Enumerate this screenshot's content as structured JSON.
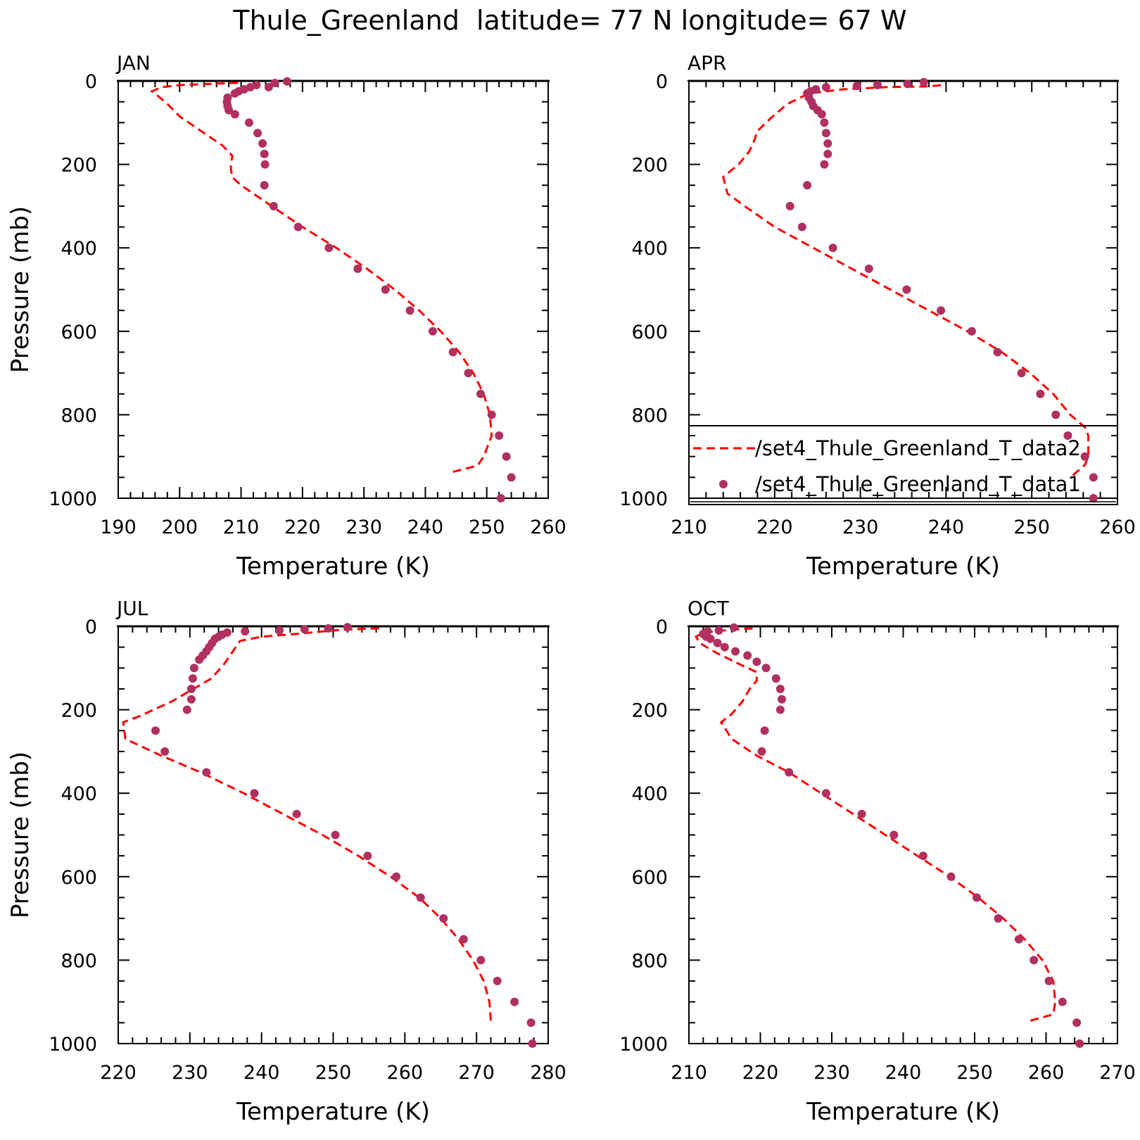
{
  "page": {
    "title": "Thule_Greenland  latitude= 77 N longitude= 67 W"
  },
  "colors": {
    "model_line": "#ff0000",
    "obs_dots": "#b03060"
  },
  "chart_data": [
    {
      "type": "line",
      "panel": "JAN",
      "xlabel": "Temperature (K)",
      "ylabel": "Pressure (mb)",
      "xlim": [
        190,
        260
      ],
      "ylim": [
        1000,
        0
      ],
      "y_inverted": true,
      "xticks": [
        190,
        200,
        210,
        220,
        230,
        240,
        250,
        260
      ],
      "yticks": [
        0,
        200,
        400,
        600,
        800,
        1000
      ],
      "legend": "none",
      "series": [
        {
          "style": "dashed-line",
          "points": [
            [
              244.5,
              937
            ],
            [
              248.5,
              922
            ],
            [
              249.5,
              900
            ],
            [
              250.8,
              850
            ],
            [
              250.5,
              800
            ],
            [
              249.5,
              750
            ],
            [
              247.8,
              700
            ],
            [
              245.5,
              650
            ],
            [
              242.5,
              600
            ],
            [
              239,
              550
            ],
            [
              235,
              500
            ],
            [
              230.5,
              450
            ],
            [
              225.5,
              400
            ],
            [
              220,
              350
            ],
            [
              215,
              300
            ],
            [
              212,
              270
            ],
            [
              210,
              250
            ],
            [
              208.5,
              230
            ],
            [
              208.3,
              200
            ],
            [
              208.6,
              180
            ],
            [
              207,
              155
            ],
            [
              205,
              135
            ],
            [
              200,
              85
            ],
            [
              198,
              55
            ],
            [
              196,
              30
            ],
            [
              195.5,
              25
            ],
            [
              197,
              15
            ],
            [
              200,
              10
            ],
            [
              205,
              7
            ],
            [
              210,
              4
            ]
          ]
        },
        {
          "style": "dots",
          "points": [
            [
              252.3,
              1000
            ],
            [
              254,
              950
            ],
            [
              253.2,
              900
            ],
            [
              252,
              850
            ],
            [
              250.8,
              800
            ],
            [
              249,
              750
            ],
            [
              247,
              700
            ],
            [
              244.5,
              650
            ],
            [
              241.2,
              600
            ],
            [
              237.5,
              550
            ],
            [
              233.5,
              500
            ],
            [
              229,
              450
            ],
            [
              224.3,
              400
            ],
            [
              219.3,
              350
            ],
            [
              215.3,
              300
            ],
            [
              213.8,
              250
            ],
            [
              213.9,
              200
            ],
            [
              213.8,
              175
            ],
            [
              213.5,
              150
            ],
            [
              212.7,
              125
            ],
            [
              211.3,
              100
            ],
            [
              209,
              80
            ],
            [
              208,
              70
            ],
            [
              207.8,
              60
            ],
            [
              207.7,
              50
            ],
            [
              207.8,
              40
            ],
            [
              209,
              30
            ],
            [
              209.6,
              25
            ],
            [
              210.5,
              20
            ],
            [
              211.5,
              15
            ],
            [
              212.5,
              10
            ],
            [
              214.5,
              15
            ],
            [
              215.5,
              5
            ],
            [
              217.5,
              1
            ]
          ]
        }
      ]
    },
    {
      "type": "line",
      "panel": "APR",
      "xlabel": "Temperature (K)",
      "ylabel": "",
      "xlim": [
        210,
        260
      ],
      "ylim": [
        1000,
        0
      ],
      "y_inverted": true,
      "xticks": [
        210,
        220,
        230,
        240,
        250,
        260
      ],
      "yticks": [
        0,
        200,
        400,
        600,
        800,
        1000
      ],
      "legend": "bottom-right",
      "series": [
        {
          "name": "/set4_Thule_Greenland_T_data2",
          "style": "dashed-line",
          "points": [
            [
              254.8,
              945
            ],
            [
              256.2,
              920
            ],
            [
              256.6,
              900
            ],
            [
              256.6,
              850
            ],
            [
              256.2,
              830
            ],
            [
              254.5,
              800
            ],
            [
              252.5,
              750
            ],
            [
              249.8,
              700
            ],
            [
              246.5,
              650
            ],
            [
              242.5,
              600
            ],
            [
              238,
              550
            ],
            [
              233.5,
              500
            ],
            [
              229,
              450
            ],
            [
              224.5,
              400
            ],
            [
              220,
              350
            ],
            [
              216.5,
              300
            ],
            [
              214.5,
              270
            ],
            [
              214,
              230
            ],
            [
              215.8,
              200
            ],
            [
              217,
              170
            ],
            [
              217.5,
              150
            ],
            [
              218,
              120
            ],
            [
              219.5,
              90
            ],
            [
              221.5,
              55
            ],
            [
              224,
              30
            ],
            [
              228,
              20
            ],
            [
              233,
              15
            ],
            [
              238,
              13
            ],
            [
              239.5,
              10
            ]
          ]
        },
        {
          "name": "/set4_Thule_Greenland_T_data1",
          "style": "dots",
          "points": [
            [
              257.2,
              1000
            ],
            [
              257.2,
              950
            ],
            [
              256.2,
              900
            ],
            [
              254.2,
              850
            ],
            [
              252.8,
              800
            ],
            [
              251,
              750
            ],
            [
              248.8,
              700
            ],
            [
              246,
              650
            ],
            [
              243,
              600
            ],
            [
              239.4,
              550
            ],
            [
              235.4,
              500
            ],
            [
              231,
              450
            ],
            [
              226.8,
              400
            ],
            [
              223.2,
              350
            ],
            [
              221.8,
              300
            ],
            [
              223.8,
              250
            ],
            [
              225.8,
              200
            ],
            [
              226.2,
              175
            ],
            [
              226.2,
              150
            ],
            [
              226,
              125
            ],
            [
              225.8,
              100
            ],
            [
              225.5,
              80
            ],
            [
              225,
              70
            ],
            [
              224.5,
              60
            ],
            [
              224.3,
              50
            ],
            [
              224,
              40
            ],
            [
              223.8,
              30
            ],
            [
              224.2,
              25
            ],
            [
              224.8,
              20
            ],
            [
              226,
              15
            ],
            [
              229.6,
              12
            ],
            [
              232,
              10
            ],
            [
              235.5,
              7
            ],
            [
              237.4,
              3
            ]
          ]
        }
      ]
    },
    {
      "type": "line",
      "panel": "JUL",
      "xlabel": "Temperature (K)",
      "ylabel": "Pressure (mb)",
      "xlim": [
        220,
        280
      ],
      "ylim": [
        1000,
        0
      ],
      "y_inverted": true,
      "xticks": [
        220,
        230,
        240,
        250,
        260,
        270,
        280
      ],
      "yticks": [
        0,
        200,
        400,
        600,
        800,
        1000
      ],
      "legend": "none",
      "series": [
        {
          "style": "dashed-line",
          "points": [
            [
              272,
              945
            ],
            [
              271.8,
              900
            ],
            [
              271,
              850
            ],
            [
              269.5,
              800
            ],
            [
              267.5,
              750
            ],
            [
              265,
              700
            ],
            [
              262,
              650
            ],
            [
              258,
              600
            ],
            [
              253.5,
              550
            ],
            [
              248.5,
              500
            ],
            [
              243,
              450
            ],
            [
              237.5,
              400
            ],
            [
              231.5,
              350
            ],
            [
              226,
              310
            ],
            [
              221,
              270
            ],
            [
              220.7,
              230
            ],
            [
              223,
              215
            ],
            [
              227.5,
              180
            ],
            [
              230.5,
              150
            ],
            [
              233,
              125
            ],
            [
              234.8,
              90
            ],
            [
              236,
              60
            ],
            [
              237,
              35
            ],
            [
              240,
              25
            ],
            [
              245,
              18
            ],
            [
              250,
              10
            ],
            [
              254,
              6
            ],
            [
              256.5,
              5
            ]
          ]
        },
        {
          "style": "dots",
          "points": [
            [
              277.8,
              1000
            ],
            [
              277.6,
              950
            ],
            [
              275.3,
              900
            ],
            [
              272.9,
              850
            ],
            [
              270.6,
              800
            ],
            [
              268.2,
              750
            ],
            [
              265.4,
              700
            ],
            [
              262.2,
              650
            ],
            [
              258.8,
              600
            ],
            [
              254.8,
              550
            ],
            [
              250.3,
              500
            ],
            [
              244.9,
              450
            ],
            [
              239,
              400
            ],
            [
              232.3,
              350
            ],
            [
              226.5,
              300
            ],
            [
              225.2,
              250
            ],
            [
              229.6,
              200
            ],
            [
              230.2,
              175
            ],
            [
              230.2,
              150
            ],
            [
              230.4,
              125
            ],
            [
              230.6,
              100
            ],
            [
              231.3,
              80
            ],
            [
              231.8,
              70
            ],
            [
              232.3,
              60
            ],
            [
              232.7,
              50
            ],
            [
              233.1,
              40
            ],
            [
              233.5,
              30
            ],
            [
              234,
              25
            ],
            [
              234.5,
              20
            ],
            [
              235.2,
              15
            ],
            [
              237.7,
              12
            ],
            [
              242.5,
              10
            ],
            [
              246,
              7
            ],
            [
              249.3,
              5
            ],
            [
              252,
              2
            ]
          ]
        }
      ]
    },
    {
      "type": "line",
      "panel": "OCT",
      "xlabel": "Temperature (K)",
      "ylabel": "",
      "xlim": [
        210,
        270
      ],
      "ylim": [
        1000,
        0
      ],
      "y_inverted": true,
      "xticks": [
        210,
        220,
        230,
        240,
        250,
        260,
        270
      ],
      "yticks": [
        0,
        200,
        400,
        600,
        800,
        1000
      ],
      "legend": "none",
      "series": [
        {
          "style": "dashed-line",
          "points": [
            [
              257.8,
              945
            ],
            [
              261,
              930
            ],
            [
              261.3,
              900
            ],
            [
              261,
              850
            ],
            [
              259.5,
              800
            ],
            [
              257,
              750
            ],
            [
              254,
              700
            ],
            [
              250.5,
              650
            ],
            [
              246.5,
              600
            ],
            [
              242,
              550
            ],
            [
              237.5,
              500
            ],
            [
              233,
              450
            ],
            [
              228.5,
              400
            ],
            [
              224,
              350
            ],
            [
              219.5,
              310
            ],
            [
              216,
              270
            ],
            [
              214.5,
              230
            ],
            [
              216,
              210
            ],
            [
              217.5,
              180
            ],
            [
              218.5,
              150
            ],
            [
              219.5,
              130
            ],
            [
              219.5,
              110
            ],
            [
              217,
              90
            ],
            [
              214,
              65
            ],
            [
              211.5,
              40
            ],
            [
              211,
              25
            ],
            [
              212,
              15
            ],
            [
              216,
              8
            ],
            [
              219,
              5
            ]
          ]
        },
        {
          "style": "dots",
          "points": [
            [
              264.7,
              1000
            ],
            [
              264.3,
              950
            ],
            [
              262.3,
              900
            ],
            [
              260.4,
              850
            ],
            [
              258.3,
              800
            ],
            [
              256.2,
              750
            ],
            [
              253.3,
              700
            ],
            [
              250.3,
              650
            ],
            [
              246.7,
              600
            ],
            [
              242.8,
              550
            ],
            [
              238.7,
              500
            ],
            [
              234.2,
              450
            ],
            [
              229.2,
              400
            ],
            [
              224,
              350
            ],
            [
              220.2,
              300
            ],
            [
              220.6,
              250
            ],
            [
              222.8,
              200
            ],
            [
              223,
              175
            ],
            [
              222.8,
              150
            ],
            [
              222.2,
              125
            ],
            [
              220.8,
              100
            ],
            [
              219.5,
              85
            ],
            [
              218.2,
              70
            ],
            [
              216.5,
              60
            ],
            [
              215,
              50
            ],
            [
              214,
              40
            ],
            [
              213,
              30
            ],
            [
              212.4,
              25
            ],
            [
              212,
              18
            ],
            [
              212.6,
              12
            ],
            [
              214.2,
              10
            ],
            [
              216.3,
              3
            ]
          ]
        }
      ]
    }
  ]
}
